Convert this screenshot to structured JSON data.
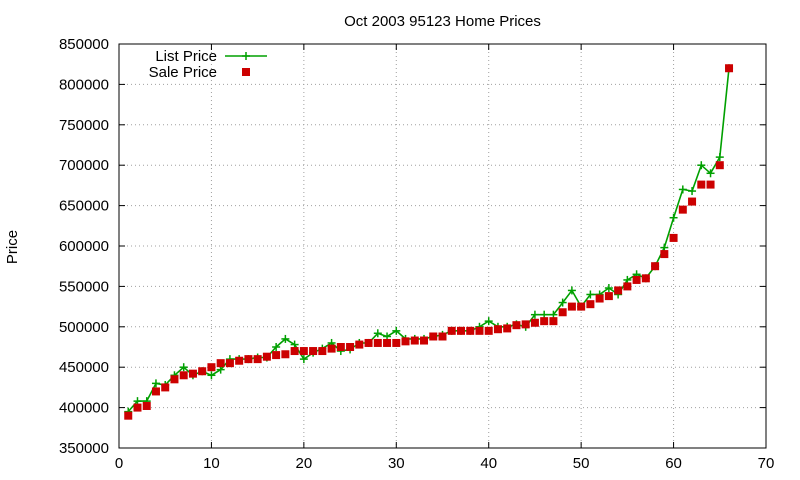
{
  "chart_data": {
    "type": "line",
    "title": "Oct 2003 95123 Home Prices",
    "xlabel": "",
    "ylabel": "Price",
    "xlim": [
      0,
      70
    ],
    "ylim": [
      350000,
      850000
    ],
    "xticks": [
      0,
      10,
      20,
      30,
      40,
      50,
      60,
      70
    ],
    "yticks": [
      350000,
      400000,
      450000,
      500000,
      550000,
      600000,
      650000,
      700000,
      750000,
      800000,
      850000
    ],
    "grid": true,
    "legend_position": "top-left",
    "series": [
      {
        "name": "List Price",
        "style": "line-with-plus-markers",
        "color": "#00a000",
        "x": [
          1,
          2,
          3,
          4,
          5,
          6,
          7,
          8,
          9,
          10,
          11,
          12,
          13,
          14,
          15,
          16,
          17,
          18,
          19,
          20,
          21,
          22,
          23,
          24,
          25,
          26,
          27,
          28,
          29,
          30,
          31,
          32,
          33,
          34,
          35,
          36,
          37,
          38,
          39,
          40,
          41,
          42,
          43,
          44,
          45,
          46,
          47,
          48,
          49,
          50,
          51,
          52,
          53,
          54,
          55,
          56,
          57,
          58,
          59,
          60,
          61,
          62,
          63,
          64,
          65,
          66
        ],
        "values": [
          395000,
          408000,
          408000,
          430000,
          428000,
          440000,
          450000,
          440000,
          445000,
          440000,
          447000,
          460000,
          460000,
          460000,
          462000,
          462000,
          475000,
          485000,
          478000,
          460000,
          468000,
          473000,
          480000,
          470000,
          472000,
          480000,
          480000,
          492000,
          488000,
          495000,
          485000,
          485000,
          485000,
          488000,
          490000,
          495000,
          495000,
          495000,
          500000,
          507000,
          500000,
          500000,
          503000,
          500000,
          515000,
          515000,
          515000,
          530000,
          545000,
          525000,
          540000,
          540000,
          548000,
          540000,
          558000,
          565000,
          560000,
          575000,
          598000,
          635000,
          670000,
          668000,
          700000,
          690000,
          710000,
          820000
        ]
      },
      {
        "name": "Sale Price",
        "style": "square-markers",
        "color": "#cc0000",
        "x": [
          1,
          2,
          3,
          4,
          5,
          6,
          7,
          8,
          9,
          10,
          11,
          12,
          13,
          14,
          15,
          16,
          17,
          18,
          19,
          20,
          21,
          22,
          23,
          24,
          25,
          26,
          27,
          28,
          29,
          30,
          31,
          32,
          33,
          34,
          35,
          36,
          37,
          38,
          39,
          40,
          41,
          42,
          43,
          44,
          45,
          46,
          47,
          48,
          49,
          50,
          51,
          52,
          53,
          54,
          55,
          56,
          57,
          58,
          59,
          60,
          61,
          62,
          63,
          64,
          65,
          66
        ],
        "values": [
          390000,
          400000,
          402000,
          420000,
          425000,
          435000,
          440000,
          442000,
          445000,
          450000,
          455000,
          455000,
          458000,
          460000,
          460000,
          463000,
          465000,
          466000,
          470000,
          470000,
          470000,
          470000,
          473000,
          475000,
          475000,
          478000,
          480000,
          480000,
          480000,
          480000,
          482000,
          483000,
          483000,
          488000,
          488000,
          495000,
          495000,
          495000,
          495000,
          495000,
          497000,
          498000,
          502000,
          503000,
          505000,
          507000,
          507000,
          518000,
          525000,
          525000,
          528000,
          535000,
          538000,
          545000,
          550000,
          558000,
          560000,
          575000,
          590000,
          610000,
          645000,
          655000,
          676000,
          676000,
          700000,
          820000
        ]
      }
    ]
  }
}
